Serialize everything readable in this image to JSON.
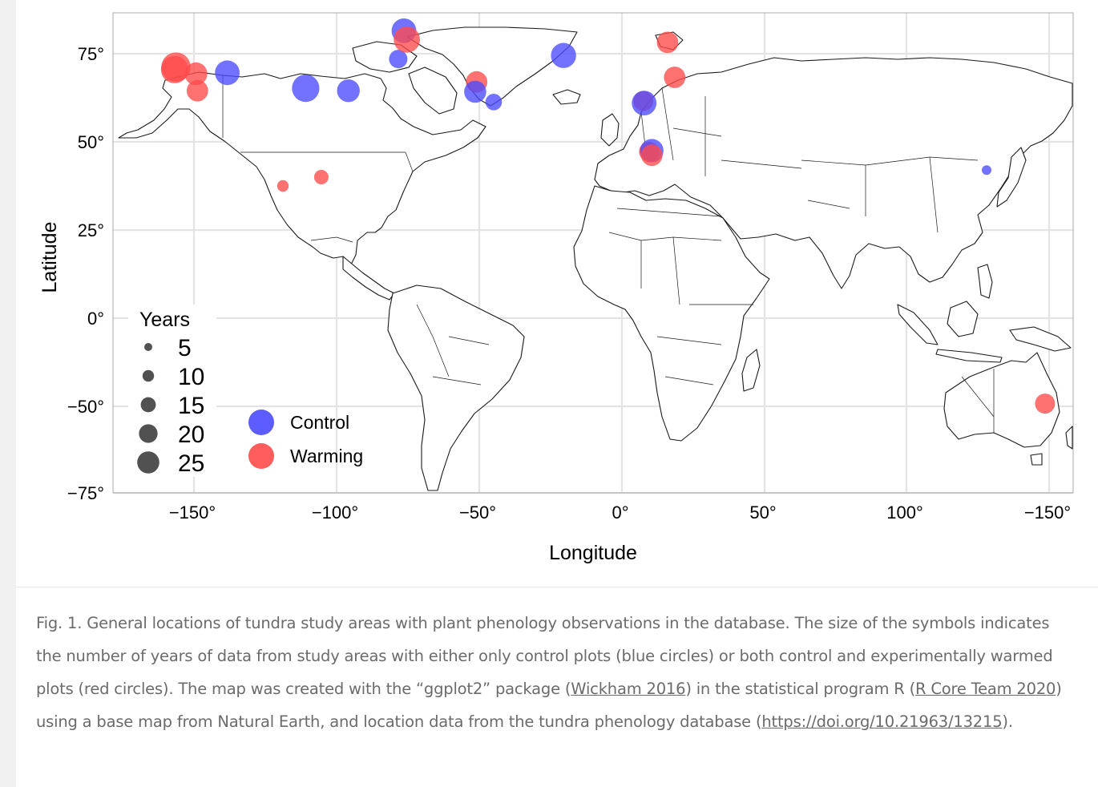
{
  "map": {
    "x_axis_label": "Longitude",
    "y_axis_label": "Latitude",
    "x_ticks": [
      "−150°",
      "−100°",
      "−50°",
      "0°",
      "50°",
      "100°",
      "−150°"
    ],
    "y_ticks": [
      "75°",
      "50°",
      "25°",
      "0°",
      "−50°",
      "−75°"
    ],
    "size_legend": {
      "title": "Years",
      "items": [
        {
          "label": "5",
          "years": 5
        },
        {
          "label": "10",
          "years": 10
        },
        {
          "label": "15",
          "years": 15
        },
        {
          "label": "20",
          "years": 20
        },
        {
          "label": "25",
          "years": 25
        }
      ]
    },
    "color_legend": [
      {
        "label": "Control",
        "color": "#4a4aff"
      },
      {
        "label": "Warming",
        "color": "#ff4a4a"
      }
    ],
    "colors": {
      "control": "#4a4aff",
      "warming": "#ff4a4a",
      "grid": "#e4e4e4",
      "panel_border": "#aaaaaa"
    },
    "sites": [
      {
        "treatment": "warming",
        "lon": -156.5,
        "lat": 71.2,
        "years": 26
      },
      {
        "treatment": "warming",
        "lon": -157,
        "lat": 70.5,
        "years": 22
      },
      {
        "treatment": "warming",
        "lon": -149.5,
        "lat": 69.3,
        "years": 14
      },
      {
        "treatment": "warming",
        "lon": -149,
        "lat": 64.5,
        "years": 12
      },
      {
        "treatment": "control",
        "lon": -138.5,
        "lat": 69.6,
        "years": 17
      },
      {
        "treatment": "control",
        "lon": -111,
        "lat": 65.2,
        "years": 22
      },
      {
        "treatment": "control",
        "lon": -96,
        "lat": 64.5,
        "years": 14
      },
      {
        "treatment": "warming",
        "lon": -119,
        "lat": 37.5,
        "years": 2
      },
      {
        "treatment": "warming",
        "lon": -105.5,
        "lat": 40,
        "years": 4
      },
      {
        "treatment": "control",
        "lon": -78.5,
        "lat": 73.5,
        "years": 8
      },
      {
        "treatment": "control",
        "lon": -76.5,
        "lat": 81.5,
        "years": 17
      },
      {
        "treatment": "warming",
        "lon": -75.5,
        "lat": 79,
        "years": 20
      },
      {
        "treatment": "warming",
        "lon": -51,
        "lat": 67,
        "years": 12
      },
      {
        "treatment": "control",
        "lon": -51.5,
        "lat": 64.2,
        "years": 13
      },
      {
        "treatment": "control",
        "lon": -45,
        "lat": 61.3,
        "years": 6
      },
      {
        "treatment": "control",
        "lon": -20.5,
        "lat": 74.5,
        "years": 18
      },
      {
        "treatment": "warming",
        "lon": 16,
        "lat": 78.2,
        "years": 12
      },
      {
        "treatment": "warming",
        "lon": 18.5,
        "lat": 68.3,
        "years": 12
      },
      {
        "treatment": "warming",
        "lon": 7.5,
        "lat": 61.6,
        "years": 10
      },
      {
        "treatment": "control",
        "lon": 7.8,
        "lat": 61,
        "years": 17
      },
      {
        "treatment": "warming",
        "lon": 9.5,
        "lat": 47.2,
        "years": 10
      },
      {
        "treatment": "control",
        "lon": 10.5,
        "lat": 47.5,
        "years": 15
      },
      {
        "treatment": "warming",
        "lon": 10.5,
        "lat": 46.2,
        "years": 12
      },
      {
        "treatment": "control",
        "lon": 128,
        "lat": 42,
        "years": 1
      },
      {
        "treatment": "warming",
        "lon": 148.5,
        "lat": -36.5,
        "years": 10
      }
    ]
  },
  "caption": {
    "part1": "Fig. 1. General locations of tundra study areas with plant phenology observations in the database. The size of the symbols indicates the number of years of data from study areas with either only control plots (blue circles) or both control and experimentally warmed plots (red circles). The map was created with the “ggplot2” package (",
    "link1": "Wickham 2016",
    "part2": ") in the statistical program R (",
    "link2": "R Core Team 2020",
    "part3": ") using a base map from Natural Earth, and location data from the tundra phenology database (",
    "link3": "https://doi.org/10.21963/13215",
    "part4": ")."
  }
}
